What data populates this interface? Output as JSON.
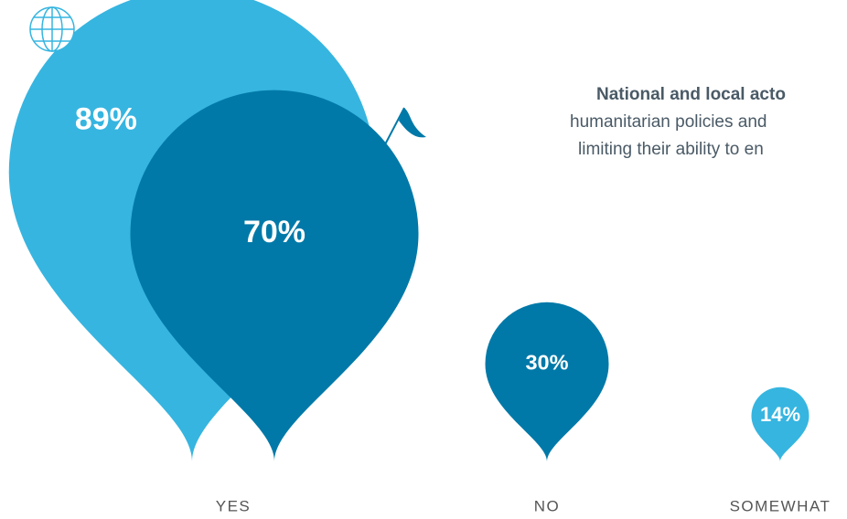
{
  "chart_data": {
    "type": "teardrop",
    "categories": [
      "YES",
      "NO",
      "SOMEWHAT"
    ],
    "series": [
      {
        "color": "#36b5e0",
        "values": [
          89,
          null,
          14
        ],
        "value_labels": [
          "89%",
          null,
          "14%"
        ]
      },
      {
        "color": "#0079a8",
        "values": [
          70,
          30,
          null
        ],
        "value_labels": [
          "70%",
          "30%",
          null
        ]
      }
    ],
    "annotation": [
      "National and local acto",
      "humanitarian policies and",
      "limiting their ability to en"
    ]
  }
}
